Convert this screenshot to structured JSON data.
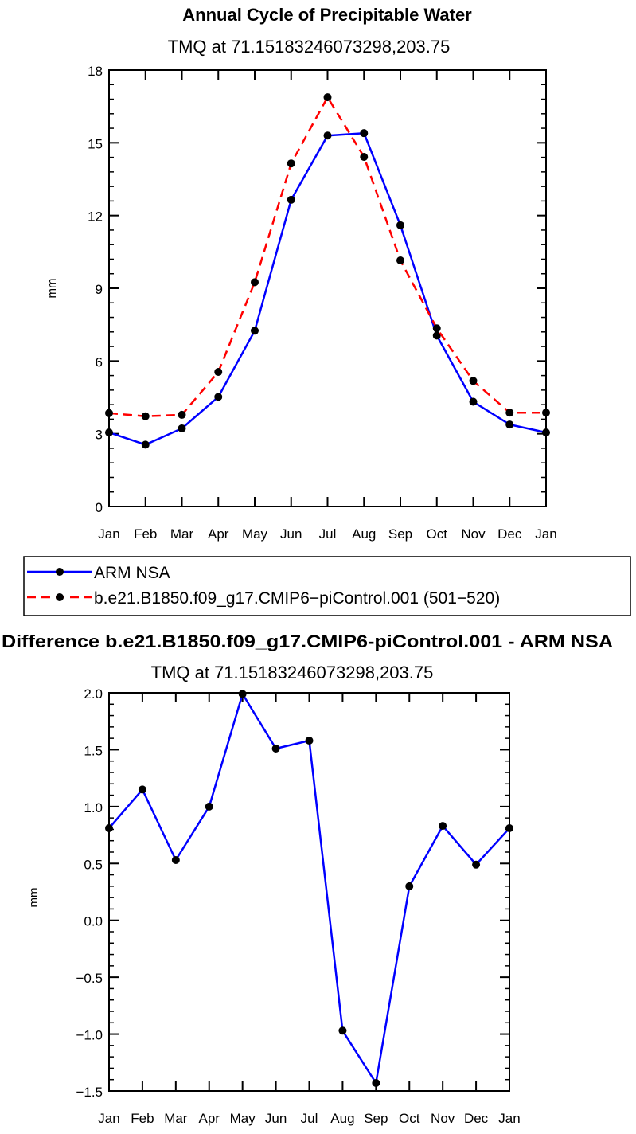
{
  "chart_data": [
    {
      "type": "line",
      "title": "Annual Cycle of Precipitable Water",
      "subtitle": "TMQ  at  71.15183246073298,203.75",
      "xlabel": "",
      "ylabel": "mm",
      "categories": [
        "Jan",
        "Feb",
        "Mar",
        "Apr",
        "May",
        "Jun",
        "Jul",
        "Aug",
        "Sep",
        "Oct",
        "Nov",
        "Dec",
        "Jan"
      ],
      "ylim": [
        0,
        18
      ],
      "yticks": [
        0,
        3,
        6,
        9,
        12,
        15,
        18
      ],
      "ytick_labels": [
        "0",
        "3",
        "6",
        "9",
        "12",
        "15",
        "18"
      ],
      "series": [
        {
          "name": "ARM  NSA",
          "color": "#0000ff",
          "dash": "solid",
          "values": [
            3.05,
            2.55,
            3.22,
            4.52,
            7.25,
            12.65,
            15.3,
            15.4,
            11.6,
            7.05,
            4.32,
            3.38,
            3.05
          ]
        },
        {
          "name": "b.e21.B1850.f09_g17.CMIP6−piControl.001  (501−520)",
          "color": "#ff0000",
          "dash": "dashed",
          "values": [
            3.85,
            3.72,
            3.78,
            5.55,
            9.25,
            14.15,
            16.88,
            14.42,
            10.15,
            7.35,
            5.18,
            3.87,
            3.87
          ]
        }
      ]
    },
    {
      "type": "line",
      "title": "Difference b.e21.B1850.f09_g17.CMIP6-piControl.001 - ARM NSA",
      "subtitle": "TMQ  at  71.15183246073298,203.75",
      "xlabel": "",
      "ylabel": "mm",
      "categories": [
        "Jan",
        "Feb",
        "Mar",
        "Apr",
        "May",
        "Jun",
        "Jul",
        "Aug",
        "Sep",
        "Oct",
        "Nov",
        "Dec",
        "Jan"
      ],
      "ylim": [
        -1.5,
        2.0
      ],
      "yticks": [
        -1.5,
        -1.0,
        -0.5,
        0.0,
        0.5,
        1.0,
        1.5,
        2.0
      ],
      "ytick_labels": [
        "−1.5",
        "−1.0",
        "−0.5",
        "0.0",
        "0.5",
        "1.0",
        "1.5",
        "2.0"
      ],
      "series": [
        {
          "name": "Difference",
          "color": "#0000ff",
          "dash": "solid",
          "values": [
            0.81,
            1.15,
            0.53,
            1.0,
            1.99,
            1.51,
            1.58,
            -0.97,
            -1.43,
            0.3,
            0.83,
            0.49,
            0.81
          ]
        }
      ]
    }
  ]
}
